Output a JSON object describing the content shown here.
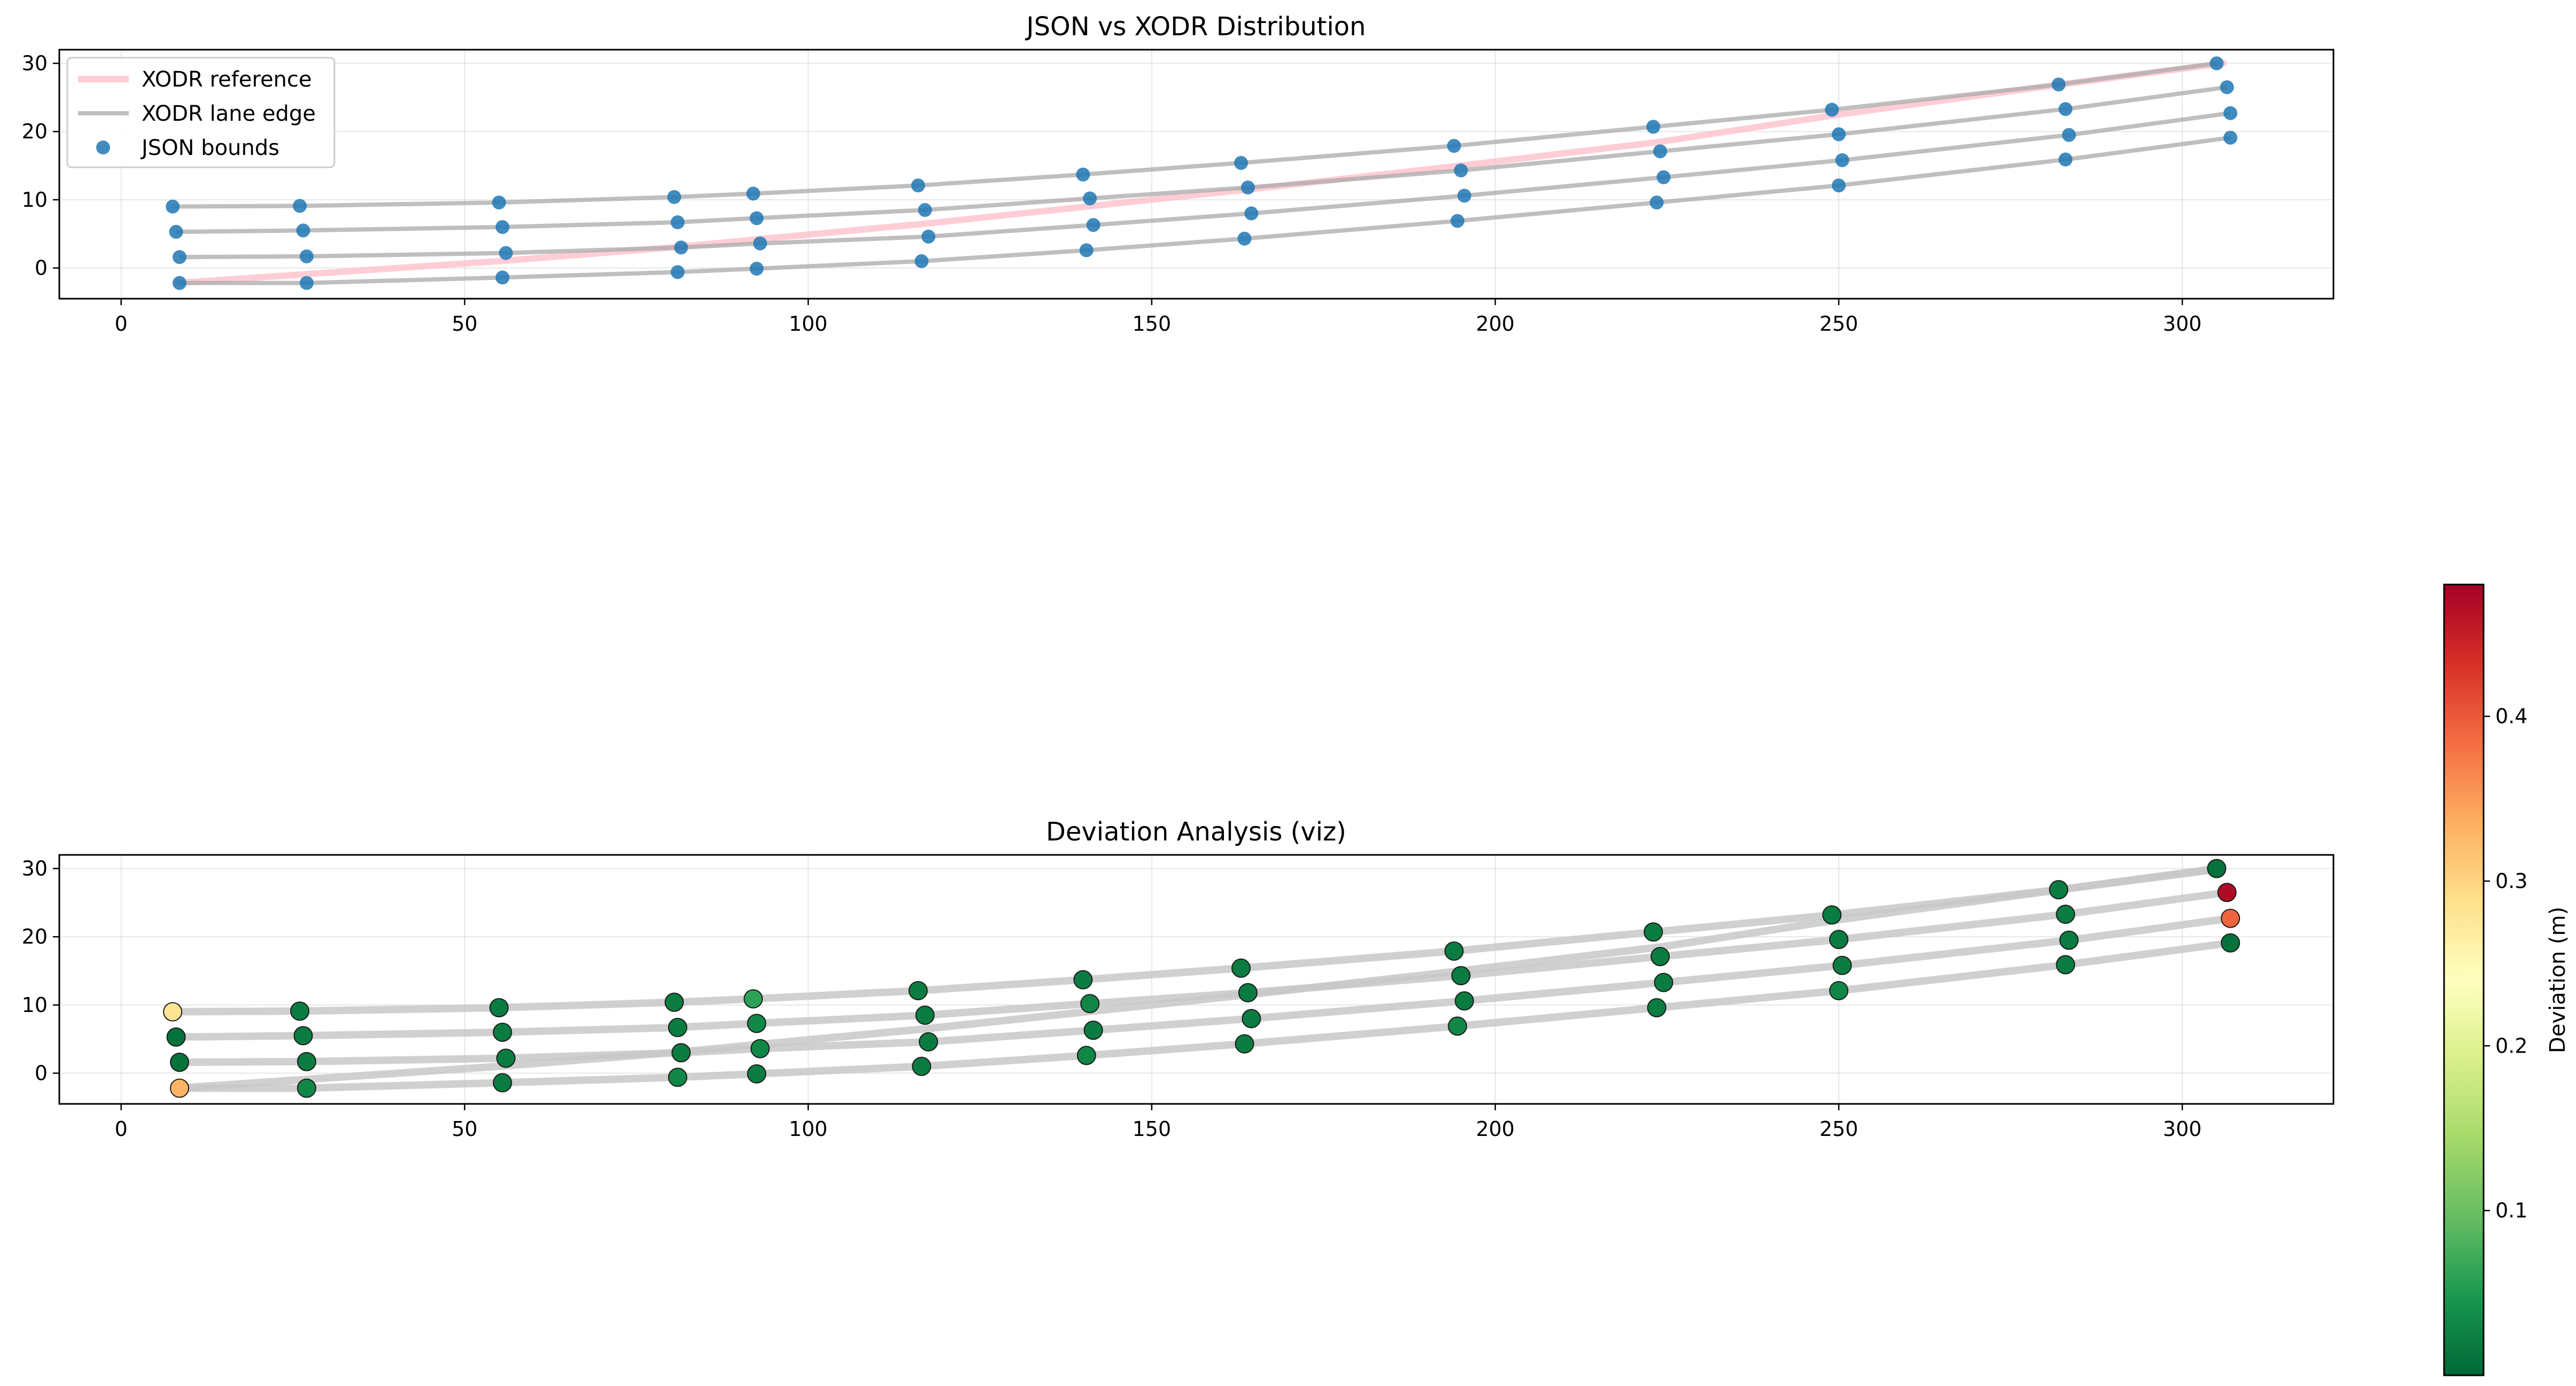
{
  "chart_data": [
    {
      "type": "line",
      "title": "JSON vs XODR Distribution",
      "xlabel": "",
      "ylabel": "",
      "xlim": [
        -9,
        322
      ],
      "ylim": [
        -4.5,
        32
      ],
      "xticks": [
        0,
        50,
        100,
        150,
        200,
        250,
        300
      ],
      "yticks": [
        0,
        10,
        20,
        30
      ],
      "grid": true,
      "legend": {
        "placement": "top-left",
        "entries": [
          {
            "label": "XODR reference",
            "kind": "line",
            "color": "#ffc0cb"
          },
          {
            "label": "XODR lane edge",
            "kind": "line",
            "color": "#a9a9a9"
          },
          {
            "label": "JSON bounds",
            "kind": "marker",
            "color": "#1f77b4"
          }
        ]
      },
      "reference": {
        "x": [
          8,
          55,
          80,
          117,
          164,
          195,
          224,
          250,
          283,
          306
        ],
        "y": [
          -2.2,
          1.0,
          3.0,
          6.5,
          11.5,
          15.0,
          18.5,
          22.5,
          27.0,
          30.0
        ]
      },
      "lane_edges": [
        {
          "x": [
            7.5,
            26,
            55,
            80.5,
            92,
            116,
            140,
            163,
            194,
            223,
            249,
            282,
            305
          ],
          "y": [
            9.0,
            9.1,
            9.6,
            10.4,
            10.9,
            12.1,
            13.7,
            15.4,
            17.9,
            20.7,
            23.2,
            26.9,
            30.0
          ]
        },
        {
          "x": [
            8,
            26.5,
            55.5,
            81,
            92.5,
            117,
            141,
            164,
            195,
            224,
            250,
            283,
            306.5
          ],
          "y": [
            5.3,
            5.5,
            6.0,
            6.7,
            7.3,
            8.5,
            10.2,
            11.8,
            14.3,
            17.1,
            19.6,
            23.3,
            26.5
          ]
        },
        {
          "x": [
            8.5,
            27,
            56,
            81.5,
            93,
            117.5,
            141.5,
            164.5,
            195.5,
            224.5,
            250.5,
            283.5,
            307
          ],
          "y": [
            1.6,
            1.7,
            2.2,
            3.0,
            3.6,
            4.6,
            6.3,
            8.0,
            10.6,
            13.3,
            15.8,
            19.5,
            22.7
          ]
        },
        {
          "x": [
            8.5,
            27,
            55.5,
            81,
            92.5,
            116.5,
            140.5,
            163.5,
            194.5,
            223.5,
            250,
            283,
            307
          ],
          "y": [
            -2.2,
            -2.2,
            -1.4,
            -0.6,
            -0.1,
            1.0,
            2.6,
            4.3,
            6.9,
            9.6,
            12.1,
            15.9,
            19.1
          ]
        }
      ],
      "json_bounds": {
        "x": [
          7.5,
          26,
          55,
          80.5,
          92,
          116,
          140,
          163,
          194,
          223,
          249,
          282,
          305,
          8,
          26.5,
          55.5,
          81,
          92.5,
          117,
          141,
          164,
          195,
          224,
          250,
          283,
          306.5,
          8.5,
          27,
          56,
          81.5,
          93,
          117.5,
          141.5,
          164.5,
          195.5,
          224.5,
          250.5,
          283.5,
          307,
          8.5,
          27,
          55.5,
          81,
          92.5,
          116.5,
          140.5,
          163.5,
          194.5,
          223.5,
          250,
          283,
          307
        ],
        "y": [
          9.0,
          9.1,
          9.6,
          10.4,
          10.9,
          12.1,
          13.7,
          15.4,
          17.9,
          20.7,
          23.2,
          26.9,
          30.0,
          5.3,
          5.5,
          6.0,
          6.7,
          7.3,
          8.5,
          10.2,
          11.8,
          14.3,
          17.1,
          19.6,
          23.3,
          26.5,
          1.6,
          1.7,
          2.2,
          3.0,
          3.6,
          4.6,
          6.3,
          8.0,
          10.6,
          13.3,
          15.8,
          19.5,
          22.7,
          -2.2,
          -2.2,
          -1.4,
          -0.6,
          -0.1,
          1.0,
          2.6,
          4.3,
          6.9,
          9.6,
          12.1,
          15.9,
          19.1
        ]
      }
    },
    {
      "type": "scatter",
      "title": "Deviation Analysis (viz)",
      "xlabel": "",
      "ylabel": "",
      "xlim": [
        -9,
        322
      ],
      "ylim": [
        -4.5,
        32
      ],
      "xticks": [
        0,
        50,
        100,
        150,
        200,
        250,
        300
      ],
      "yticks": [
        0,
        10,
        20,
        30
      ],
      "grid": true,
      "colorbar": {
        "label": "Deviation (m)",
        "colormap": "RdYlGn_r",
        "range": [
          0.0,
          0.48
        ],
        "ticks": [
          0.1,
          0.2,
          0.3,
          0.4
        ]
      },
      "lane_edges": [
        {
          "x": [
            7.5,
            26,
            55,
            80.5,
            92,
            116,
            140,
            163,
            194,
            223,
            249,
            282,
            305
          ],
          "y": [
            9.0,
            9.1,
            9.6,
            10.4,
            10.9,
            12.1,
            13.7,
            15.4,
            17.9,
            20.7,
            23.2,
            26.9,
            30.0
          ]
        },
        {
          "x": [
            8,
            26.5,
            55.5,
            81,
            92.5,
            117,
            141,
            164,
            195,
            224,
            250,
            283,
            306.5
          ],
          "y": [
            5.3,
            5.5,
            6.0,
            6.7,
            7.3,
            8.5,
            10.2,
            11.8,
            14.3,
            17.1,
            19.6,
            23.3,
            26.5
          ]
        },
        {
          "x": [
            8.5,
            27,
            56,
            81.5,
            93,
            117.5,
            141.5,
            164.5,
            195.5,
            224.5,
            250.5,
            283.5,
            307
          ],
          "y": [
            1.6,
            1.7,
            2.2,
            3.0,
            3.6,
            4.6,
            6.3,
            8.0,
            10.6,
            13.3,
            15.8,
            19.5,
            22.7
          ]
        },
        {
          "x": [
            8.5,
            27,
            55.5,
            81,
            92.5,
            116.5,
            140.5,
            163.5,
            194.5,
            223.5,
            250,
            283,
            307
          ],
          "y": [
            -2.2,
            -2.2,
            -1.4,
            -0.6,
            -0.1,
            1.0,
            2.6,
            4.3,
            6.9,
            9.6,
            12.1,
            15.9,
            19.1
          ]
        },
        {
          "x": [
            8,
            55,
            80,
            117,
            164,
            195,
            224,
            250,
            283,
            306
          ],
          "y": [
            -2.2,
            1.0,
            3.0,
            6.5,
            11.5,
            15.0,
            18.5,
            22.5,
            27.0,
            30.0
          ]
        }
      ],
      "points": [
        {
          "x": 7.5,
          "y": 9.0,
          "deviation": 0.28
        },
        {
          "x": 26,
          "y": 9.1,
          "deviation": 0.02
        },
        {
          "x": 55,
          "y": 9.6,
          "deviation": 0.02
        },
        {
          "x": 80.5,
          "y": 10.4,
          "deviation": 0.02
        },
        {
          "x": 92,
          "y": 10.9,
          "deviation": 0.06
        },
        {
          "x": 116,
          "y": 12.1,
          "deviation": 0.02
        },
        {
          "x": 140,
          "y": 13.7,
          "deviation": 0.02
        },
        {
          "x": 163,
          "y": 15.4,
          "deviation": 0.02
        },
        {
          "x": 194,
          "y": 17.9,
          "deviation": 0.02
        },
        {
          "x": 223,
          "y": 20.7,
          "deviation": 0.02
        },
        {
          "x": 249,
          "y": 23.2,
          "deviation": 0.02
        },
        {
          "x": 282,
          "y": 26.9,
          "deviation": 0.02
        },
        {
          "x": 305,
          "y": 30.0,
          "deviation": 0.01
        },
        {
          "x": 8,
          "y": 5.3,
          "deviation": 0.01
        },
        {
          "x": 26.5,
          "y": 5.5,
          "deviation": 0.02
        },
        {
          "x": 55.5,
          "y": 6.0,
          "deviation": 0.02
        },
        {
          "x": 81,
          "y": 6.7,
          "deviation": 0.02
        },
        {
          "x": 92.5,
          "y": 7.3,
          "deviation": 0.03
        },
        {
          "x": 117,
          "y": 8.5,
          "deviation": 0.02
        },
        {
          "x": 141,
          "y": 10.2,
          "deviation": 0.03
        },
        {
          "x": 164,
          "y": 11.8,
          "deviation": 0.02
        },
        {
          "x": 195,
          "y": 14.3,
          "deviation": 0.02
        },
        {
          "x": 224,
          "y": 17.1,
          "deviation": 0.02
        },
        {
          "x": 250,
          "y": 19.6,
          "deviation": 0.02
        },
        {
          "x": 283,
          "y": 23.3,
          "deviation": 0.02
        },
        {
          "x": 306.5,
          "y": 26.5,
          "deviation": 0.47
        },
        {
          "x": 8.5,
          "y": 1.6,
          "deviation": 0.01
        },
        {
          "x": 27,
          "y": 1.7,
          "deviation": 0.02
        },
        {
          "x": 56,
          "y": 2.2,
          "deviation": 0.02
        },
        {
          "x": 81.5,
          "y": 3.0,
          "deviation": 0.02
        },
        {
          "x": 93,
          "y": 3.6,
          "deviation": 0.03
        },
        {
          "x": 117.5,
          "y": 4.6,
          "deviation": 0.02
        },
        {
          "x": 141.5,
          "y": 6.3,
          "deviation": 0.02
        },
        {
          "x": 164.5,
          "y": 8.0,
          "deviation": 0.02
        },
        {
          "x": 195.5,
          "y": 10.6,
          "deviation": 0.02
        },
        {
          "x": 224.5,
          "y": 13.3,
          "deviation": 0.02
        },
        {
          "x": 250.5,
          "y": 15.8,
          "deviation": 0.02
        },
        {
          "x": 283.5,
          "y": 19.5,
          "deviation": 0.02
        },
        {
          "x": 307,
          "y": 22.7,
          "deviation": 0.39
        },
        {
          "x": 8.5,
          "y": -2.2,
          "deviation": 0.33
        },
        {
          "x": 27,
          "y": -2.2,
          "deviation": 0.03
        },
        {
          "x": 55.5,
          "y": -1.4,
          "deviation": 0.02
        },
        {
          "x": 81,
          "y": -0.6,
          "deviation": 0.03
        },
        {
          "x": 92.5,
          "y": -0.1,
          "deviation": 0.02
        },
        {
          "x": 116.5,
          "y": 1.0,
          "deviation": 0.02
        },
        {
          "x": 140.5,
          "y": 2.6,
          "deviation": 0.03
        },
        {
          "x": 163.5,
          "y": 4.3,
          "deviation": 0.02
        },
        {
          "x": 194.5,
          "y": 6.9,
          "deviation": 0.03
        },
        {
          "x": 223.5,
          "y": 9.6,
          "deviation": 0.02
        },
        {
          "x": 250,
          "y": 12.1,
          "deviation": 0.03
        },
        {
          "x": 283,
          "y": 15.9,
          "deviation": 0.02
        },
        {
          "x": 307,
          "y": 19.1,
          "deviation": 0.01
        }
      ]
    }
  ]
}
